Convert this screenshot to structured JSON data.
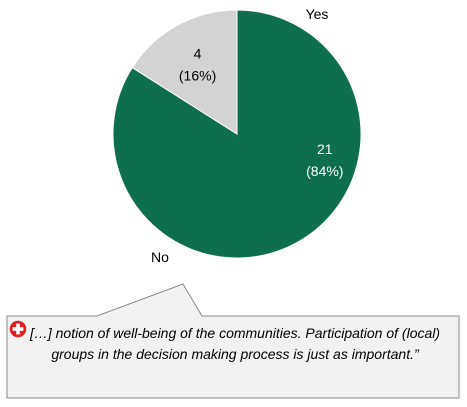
{
  "chart_data": {
    "type": "pie",
    "slices": [
      {
        "label": "Yes",
        "value": 21,
        "percent": "84%",
        "color": "#0e6e4d",
        "value_color": "#ffffff"
      },
      {
        "label": "No",
        "value": 4,
        "percent": "16%",
        "color": "#d3d3d3",
        "value_color": "#000000"
      }
    ],
    "start": "top",
    "direction": "clockwise"
  },
  "quote": {
    "text": "[…] notion of well-being of the communities. Participation of (local) groups in the decision making process is just as important.”",
    "icon": "plus-icon",
    "icon_color": "#e02020"
  }
}
